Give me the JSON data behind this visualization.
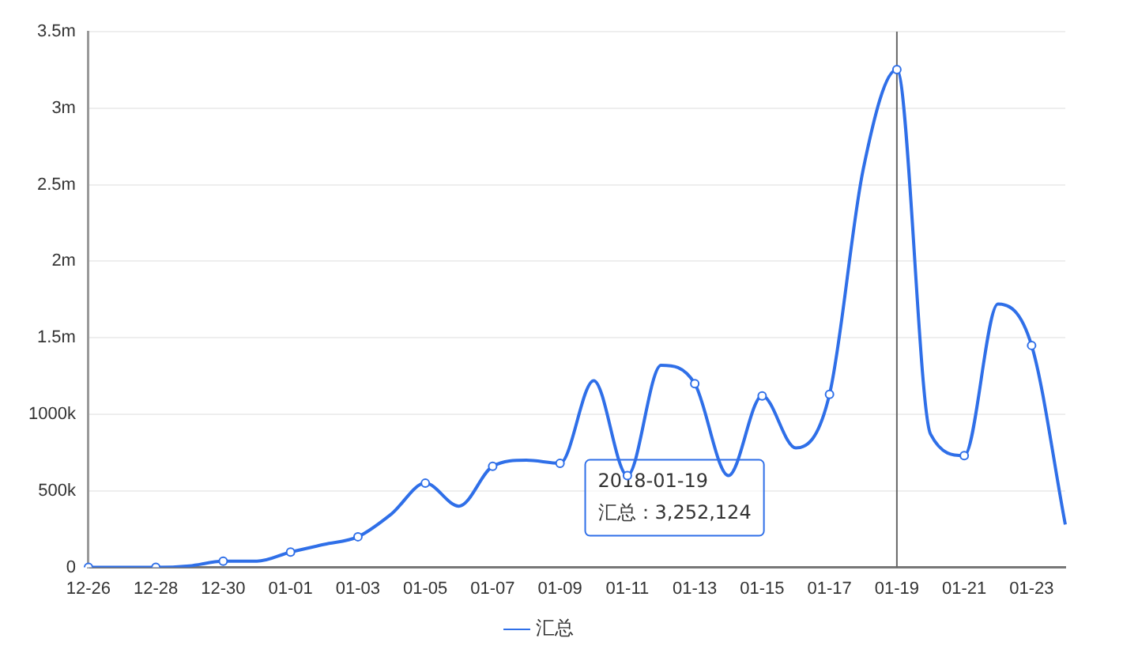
{
  "chart_data": {
    "type": "line",
    "categories": [
      "12-26",
      null,
      "12-28",
      null,
      "12-30",
      null,
      "01-01",
      null,
      "01-03",
      null,
      "01-05",
      null,
      "01-07",
      null,
      "01-09",
      null,
      "01-11",
      null,
      "01-13",
      null,
      "01-15",
      null,
      "01-17",
      null,
      "01-19",
      null,
      "01-21",
      null,
      "01-23",
      null
    ],
    "series": [
      {
        "name": "汇总",
        "color": "#2f6fe8",
        "values": [
          0,
          0,
          0,
          10000,
          40000,
          40000,
          100000,
          150000,
          200000,
          350000,
          550000,
          400000,
          660000,
          700000,
          680000,
          1220000,
          600000,
          1320000,
          1200000,
          600000,
          1120000,
          780000,
          1130000,
          2600000,
          3252124,
          870000,
          730000,
          1720000,
          1450000,
          280000
        ]
      }
    ],
    "ylim": [
      0,
      3500000
    ],
    "yticks": [
      0,
      {
        "value": 500000,
        "label": "500k"
      },
      {
        "value": 1000000,
        "label": "1000k"
      },
      {
        "value": 1500000,
        "label": "1.5m"
      },
      {
        "value": 2000000,
        "label": "2m"
      },
      {
        "value": 2500000,
        "label": "2.5m"
      },
      {
        "value": 3000000,
        "label": "3m"
      },
      {
        "value": 3500000,
        "label": "3.5m"
      }
    ],
    "grid": "y",
    "legend": "bottom",
    "marker": "circle",
    "line_style": "solid",
    "ref_lines": [
      {
        "axis": "x",
        "value": "01-19",
        "color": "#666666"
      }
    ],
    "annotations": [
      "2018-01-19\n汇总：3,252,124"
    ]
  }
}
